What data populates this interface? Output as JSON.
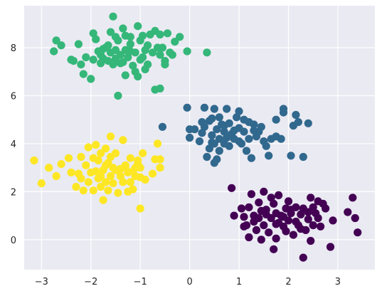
{
  "chart_data": {
    "type": "scatter",
    "title": "",
    "xlabel": "",
    "ylabel": "",
    "xlim": [
      -3.35,
      3.75
    ],
    "ylim": [
      -1.25,
      9.75
    ],
    "grid": true,
    "background": "#eaeaf2",
    "x_ticks": [
      -3,
      -2,
      -1,
      0,
      1,
      2,
      3
    ],
    "y_ticks": [
      0,
      2,
      4,
      6,
      8
    ],
    "x_tick_labels": [
      "−3",
      "−2",
      "−1",
      "0",
      "1",
      "2",
      "3"
    ],
    "y_tick_labels": [
      "0",
      "2",
      "4",
      "6",
      "8"
    ],
    "series": [
      {
        "color": "#35b779",
        "points": [
          [
            -2.7,
            8.3
          ],
          [
            -2.75,
            7.85
          ],
          [
            -2.6,
            8.1
          ],
          [
            -2.4,
            7.5
          ],
          [
            -2.35,
            7.45
          ],
          [
            -2.2,
            7.3
          ],
          [
            -2.15,
            6.9
          ],
          [
            -2.25,
            8.15
          ],
          [
            -2.0,
            6.7
          ],
          [
            -1.95,
            7.5
          ],
          [
            -1.95,
            8.6
          ],
          [
            -1.9,
            8.35
          ],
          [
            -1.85,
            7.85
          ],
          [
            -1.8,
            7.7
          ],
          [
            -1.8,
            7.35
          ],
          [
            -1.75,
            7.95
          ],
          [
            -1.7,
            8.0
          ],
          [
            -1.65,
            7.45
          ],
          [
            -1.6,
            8.65
          ],
          [
            -1.6,
            7.8
          ],
          [
            -1.55,
            9.3
          ],
          [
            -1.55,
            7.3
          ],
          [
            -1.5,
            7.9
          ],
          [
            -1.5,
            7.55
          ],
          [
            -1.45,
            6.0
          ],
          [
            -1.45,
            8.3
          ],
          [
            -1.4,
            7.7
          ],
          [
            -1.35,
            8.8
          ],
          [
            -1.35,
            7.4
          ],
          [
            -1.3,
            8.5
          ],
          [
            -1.3,
            7.9
          ],
          [
            -1.3,
            6.85
          ],
          [
            -1.25,
            7.6
          ],
          [
            -1.2,
            8.15
          ],
          [
            -1.15,
            7.25
          ],
          [
            -1.1,
            7.8
          ],
          [
            -1.1,
            7.0
          ],
          [
            -1.05,
            8.9
          ],
          [
            -1.05,
            6.8
          ],
          [
            -1.0,
            8.3
          ],
          [
            -0.95,
            8.5
          ],
          [
            -0.95,
            7.6
          ],
          [
            -0.9,
            7.9
          ],
          [
            -0.85,
            8.1
          ],
          [
            -0.85,
            7.3
          ],
          [
            -0.8,
            8.55
          ],
          [
            -0.75,
            7.8
          ],
          [
            -0.7,
            8.7
          ],
          [
            -0.7,
            6.25
          ],
          [
            -0.6,
            8.55
          ],
          [
            -0.6,
            7.7
          ],
          [
            -0.6,
            6.3
          ],
          [
            -0.55,
            8.0
          ],
          [
            -0.5,
            7.3
          ],
          [
            -0.5,
            7.45
          ],
          [
            -0.45,
            8.6
          ],
          [
            -0.4,
            7.8
          ],
          [
            -0.35,
            7.7
          ],
          [
            -0.3,
            8.25
          ],
          [
            -0.2,
            8.45
          ],
          [
            -0.05,
            7.85
          ],
          [
            0.35,
            7.8
          ],
          [
            -1.2,
            8.45
          ],
          [
            -1.5,
            8.45
          ],
          [
            -1.75,
            7.55
          ],
          [
            -2.1,
            7.6
          ],
          [
            -1.0,
            7.5
          ],
          [
            -1.4,
            7.35
          ],
          [
            -0.9,
            7.1
          ],
          [
            -1.65,
            8.1
          ],
          [
            -1.2,
            7.85
          ],
          [
            -0.65,
            8.0
          ]
        ]
      },
      {
        "color": "#31688e",
        "points": [
          [
            -0.55,
            4.7
          ],
          [
            -0.05,
            5.5
          ],
          [
            0.0,
            4.6
          ],
          [
            0.0,
            4.25
          ],
          [
            0.1,
            4.6
          ],
          [
            0.2,
            4.1
          ],
          [
            0.25,
            4.9
          ],
          [
            0.3,
            5.5
          ],
          [
            0.3,
            4.7
          ],
          [
            0.35,
            3.45
          ],
          [
            0.4,
            3.8
          ],
          [
            0.4,
            4.95
          ],
          [
            0.45,
            5.05
          ],
          [
            0.45,
            4.35
          ],
          [
            0.5,
            5.45
          ],
          [
            0.5,
            3.2
          ],
          [
            0.5,
            4.0
          ],
          [
            0.55,
            4.6
          ],
          [
            0.55,
            3.35
          ],
          [
            0.6,
            4.2
          ],
          [
            0.6,
            3.7
          ],
          [
            0.65,
            4.8
          ],
          [
            0.7,
            4.5
          ],
          [
            0.7,
            4.0
          ],
          [
            0.75,
            4.25
          ],
          [
            0.75,
            5.45
          ],
          [
            0.8,
            3.9
          ],
          [
            0.8,
            4.85
          ],
          [
            0.85,
            4.4
          ],
          [
            0.9,
            4.2
          ],
          [
            0.95,
            5.1
          ],
          [
            1.0,
            4.65
          ],
          [
            1.0,
            5.35
          ],
          [
            1.05,
            4.0
          ],
          [
            1.1,
            4.5
          ],
          [
            1.1,
            5.0
          ],
          [
            1.15,
            3.7
          ],
          [
            1.2,
            4.2
          ],
          [
            1.25,
            3.4
          ],
          [
            1.3,
            4.8
          ],
          [
            1.35,
            4.3
          ],
          [
            1.4,
            4.5
          ],
          [
            1.45,
            4.7
          ],
          [
            1.5,
            4.1
          ],
          [
            1.55,
            3.9
          ],
          [
            1.65,
            4.2
          ],
          [
            1.75,
            4.3
          ],
          [
            1.75,
            5.0
          ],
          [
            1.85,
            4.2
          ],
          [
            1.9,
            5.3
          ],
          [
            1.9,
            5.45
          ],
          [
            2.05,
            3.5
          ],
          [
            2.1,
            4.75
          ],
          [
            2.15,
            5.2
          ],
          [
            2.2,
            4.9
          ],
          [
            2.3,
            3.45
          ],
          [
            2.4,
            4.85
          ],
          [
            1.6,
            3.5
          ],
          [
            0.9,
            4.55
          ],
          [
            0.6,
            5.1
          ],
          [
            1.2,
            4.9
          ],
          [
            0.25,
            4.45
          ],
          [
            0.45,
            4.05
          ],
          [
            1.0,
            4.1
          ],
          [
            0.7,
            4.75
          ],
          [
            1.3,
            4.55
          ]
        ]
      },
      {
        "color": "#fde725",
        "points": [
          [
            -3.15,
            3.3
          ],
          [
            -3.0,
            2.35
          ],
          [
            -2.85,
            3.0
          ],
          [
            -2.7,
            2.65
          ],
          [
            -2.6,
            3.15
          ],
          [
            -2.45,
            3.4
          ],
          [
            -2.3,
            2.2
          ],
          [
            -2.25,
            2.75
          ],
          [
            -2.2,
            3.45
          ],
          [
            -2.15,
            2.05
          ],
          [
            -2.1,
            3.1
          ],
          [
            -2.05,
            2.4
          ],
          [
            -2.0,
            2.8
          ],
          [
            -1.95,
            3.4
          ],
          [
            -1.95,
            2.05
          ],
          [
            -1.9,
            3.95
          ],
          [
            -1.85,
            2.55
          ],
          [
            -1.85,
            3.3
          ],
          [
            -1.8,
            2.2
          ],
          [
            -1.8,
            3.6
          ],
          [
            -1.75,
            1.65
          ],
          [
            -1.75,
            2.9
          ],
          [
            -1.7,
            2.4
          ],
          [
            -1.7,
            3.8
          ],
          [
            -1.65,
            2.05
          ],
          [
            -1.65,
            3.2
          ],
          [
            -1.6,
            2.65
          ],
          [
            -1.6,
            4.3
          ],
          [
            -1.55,
            3.0
          ],
          [
            -1.55,
            2.35
          ],
          [
            -1.5,
            3.6
          ],
          [
            -1.5,
            2.9
          ],
          [
            -1.45,
            1.95
          ],
          [
            -1.4,
            2.65
          ],
          [
            -1.35,
            4.15
          ],
          [
            -1.35,
            2.4
          ],
          [
            -1.3,
            3.1
          ],
          [
            -1.25,
            2.0
          ],
          [
            -1.25,
            2.8
          ],
          [
            -1.2,
            3.4
          ],
          [
            -1.2,
            2.4
          ],
          [
            -1.15,
            2.1
          ],
          [
            -1.1,
            3.0
          ],
          [
            -1.1,
            2.65
          ],
          [
            -1.05,
            3.3
          ],
          [
            -1.0,
            3.0
          ],
          [
            -1.0,
            2.6
          ],
          [
            -1.0,
            1.3
          ],
          [
            -0.95,
            3.6
          ],
          [
            -0.9,
            2.5
          ],
          [
            -0.75,
            2.75
          ],
          [
            -0.7,
            3.35
          ],
          [
            -0.6,
            3.0
          ],
          [
            -0.6,
            3.35
          ],
          [
            -0.65,
            4.0
          ],
          [
            -1.3,
            3.0
          ],
          [
            -1.9,
            2.85
          ],
          [
            -2.05,
            3.85
          ],
          [
            -1.7,
            3.1
          ],
          [
            -1.4,
            2.95
          ],
          [
            -1.15,
            2.85
          ],
          [
            -1.8,
            2.65
          ],
          [
            -2.2,
            2.55
          ],
          [
            -1.6,
            3.45
          ],
          [
            -1.05,
            3.15
          ],
          [
            -2.4,
            2.8
          ]
        ]
      },
      {
        "color": "#440154",
        "points": [
          [
            0.85,
            2.15
          ],
          [
            0.9,
            1.0
          ],
          [
            1.05,
            1.3
          ],
          [
            1.1,
            0.95
          ],
          [
            1.15,
            0.6
          ],
          [
            1.2,
            1.35
          ],
          [
            1.2,
            0.1
          ],
          [
            1.25,
            1.9
          ],
          [
            1.3,
            1.0
          ],
          [
            1.3,
            0.75
          ],
          [
            1.35,
            0.4
          ],
          [
            1.4,
            1.55
          ],
          [
            1.45,
            1.2
          ],
          [
            1.45,
            0.0
          ],
          [
            1.5,
            2.0
          ],
          [
            1.5,
            0.6
          ],
          [
            1.55,
            1.25
          ],
          [
            1.6,
            0.3
          ],
          [
            1.65,
            1.75
          ],
          [
            1.65,
            0.9
          ],
          [
            1.7,
            1.5
          ],
          [
            1.7,
            -0.4
          ],
          [
            1.75,
            1.1
          ],
          [
            1.75,
            0.05
          ],
          [
            1.8,
            0.7
          ],
          [
            1.8,
            1.85
          ],
          [
            1.85,
            1.0
          ],
          [
            1.9,
            0.55
          ],
          [
            1.95,
            1.3
          ],
          [
            1.95,
            0.35
          ],
          [
            2.0,
            1.6
          ],
          [
            2.0,
            0.8
          ],
          [
            2.05,
            1.1
          ],
          [
            2.1,
            0.2
          ],
          [
            2.15,
            1.35
          ],
          [
            2.2,
            0.6
          ],
          [
            2.25,
            1.05
          ],
          [
            2.3,
            1.3
          ],
          [
            2.3,
            -0.75
          ],
          [
            2.35,
            0.4
          ],
          [
            2.4,
            0.85
          ],
          [
            2.45,
            1.75
          ],
          [
            2.45,
            -0.05
          ],
          [
            2.5,
            1.35
          ],
          [
            2.5,
            0.6
          ],
          [
            2.55,
            1.1
          ],
          [
            2.6,
            0.9
          ],
          [
            2.7,
            1.5
          ],
          [
            2.75,
            1.3
          ],
          [
            2.85,
            -0.3
          ],
          [
            2.9,
            0.8
          ],
          [
            3.2,
            1.15
          ],
          [
            3.3,
            1.75
          ],
          [
            3.35,
            0.9
          ],
          [
            3.4,
            0.3
          ],
          [
            1.55,
            1.05
          ],
          [
            1.9,
            0.95
          ],
          [
            2.25,
            0.45
          ],
          [
            1.4,
            0.9
          ],
          [
            2.05,
            1.25
          ],
          [
            2.65,
            0.55
          ],
          [
            1.1,
            0.55
          ],
          [
            2.4,
            1.15
          ],
          [
            1.75,
            0.65
          ],
          [
            2.15,
            0.75
          ],
          [
            2.6,
            1.6
          ]
        ]
      }
    ]
  }
}
